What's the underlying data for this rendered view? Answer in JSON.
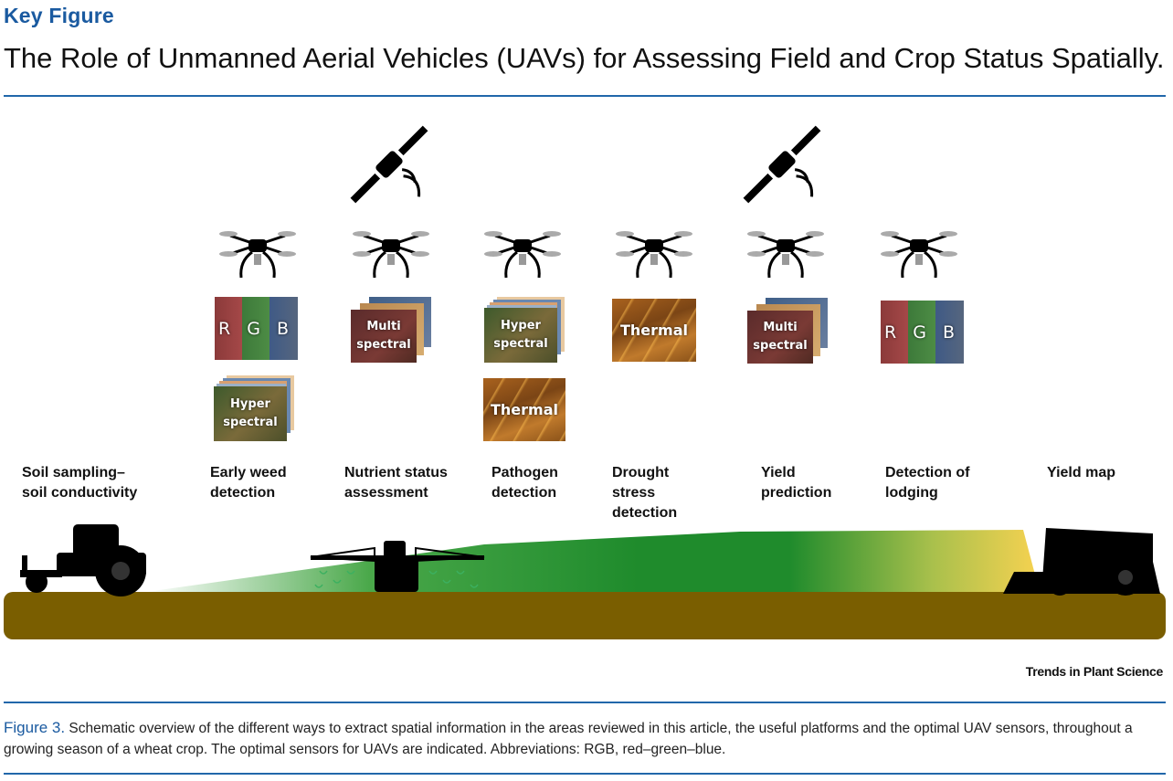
{
  "header": {
    "kicker": "Key Figure",
    "title": "The Role of Unmanned Aerial Vehicles (UAVs) for Assessing Field and Crop Status Spatially."
  },
  "stages": [
    {
      "id": "soil",
      "label": "Soil sampling–\nsoil conductivity"
    },
    {
      "id": "weed",
      "label": "Early weed\ndetection"
    },
    {
      "id": "nutrient",
      "label": "Nutrient status\nassessment"
    },
    {
      "id": "pathogen",
      "label": "Pathogen\ndetection"
    },
    {
      "id": "drought",
      "label": "Drought\nstress\ndetection"
    },
    {
      "id": "yield",
      "label": "Yield\nprediction"
    },
    {
      "id": "lodging",
      "label": "Detection of\nlodging"
    },
    {
      "id": "yieldmap",
      "label": "Yield map"
    }
  ],
  "sensors": {
    "rgb": "R G B",
    "multispectral": "Multi\nspectral",
    "hyperspectral": "Hyper\nspectral",
    "thermal": "Thermal"
  },
  "attribution": "Trends in Plant Science",
  "caption": {
    "lead": "Figure 3.",
    "text": " Schematic overview of the different ways to extract spatial information in the areas reviewed in this article, the useful platforms and the optimal UAV sensors, throughout a growing season of a wheat crop. The optimal sensors for UAVs are indicated. Abbreviations: RGB, red–green–blue."
  },
  "colors": {
    "accent": "#2167aa",
    "soil": "#7a5e00",
    "crop_green": "#1f8b2c",
    "ripe_yellow": "#f7d251"
  }
}
